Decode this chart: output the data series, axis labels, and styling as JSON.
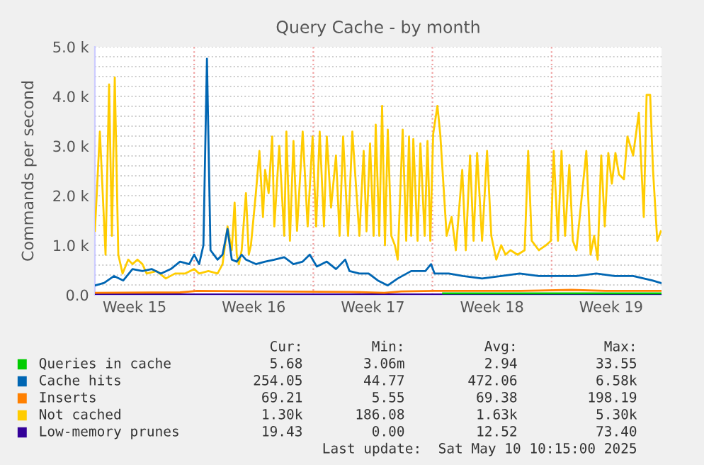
{
  "chart_data": {
    "type": "line",
    "title": "Query Cache - by month",
    "ylabel": "Commands per second",
    "xlim": [
      "2025-04-08T04:00",
      "2025-05-11T11:00"
    ],
    "ylim": [
      0,
      5000
    ],
    "xticks": [
      {
        "value": "2025-04-10T12:00",
        "label": "Week 15"
      },
      {
        "value": "2025-04-17T12:00",
        "label": "Week 16"
      },
      {
        "value": "2025-04-24T12:00",
        "label": "Week 17"
      },
      {
        "value": "2025-05-01T12:00",
        "label": "Week 18"
      },
      {
        "value": "2025-05-08T12:00",
        "label": "Week 19"
      }
    ],
    "yticks": [
      {
        "value": 0,
        "label": "0.0"
      },
      {
        "value": 200,
        "label": null
      },
      {
        "value": 400,
        "label": null
      },
      {
        "value": 600,
        "label": null
      },
      {
        "value": 800,
        "label": null
      },
      {
        "value": 1000,
        "label": "1.0 k"
      },
      {
        "value": 1200,
        "label": null
      },
      {
        "value": 1400,
        "label": null
      },
      {
        "value": 1600,
        "label": null
      },
      {
        "value": 1800,
        "label": null
      },
      {
        "value": 2000,
        "label": "2.0 k"
      },
      {
        "value": 2200,
        "label": null
      },
      {
        "value": 2400,
        "label": null
      },
      {
        "value": 2600,
        "label": null
      },
      {
        "value": 2800,
        "label": null
      },
      {
        "value": 3000,
        "label": "3.0 k"
      },
      {
        "value": 3200,
        "label": null
      },
      {
        "value": 3400,
        "label": null
      },
      {
        "value": 3600,
        "label": null
      },
      {
        "value": 3800,
        "label": null
      },
      {
        "value": 4000,
        "label": "4.0 k"
      },
      {
        "value": 4200,
        "label": null
      },
      {
        "value": 4400,
        "label": null
      },
      {
        "value": 4600,
        "label": null
      },
      {
        "value": 4800,
        "label": null
      },
      {
        "value": 5000,
        "label": "5.0 k"
      }
    ],
    "grid": "y",
    "legend": "bottom",
    "ref_lines": [
      {
        "axis": "x",
        "value": "2025-04-14",
        "label": null,
        "color": "#f0a0a0",
        "line_style": "dotted"
      },
      {
        "axis": "x",
        "value": "2025-04-21",
        "label": null,
        "color": "#f0a0a0",
        "line_style": "dotted"
      },
      {
        "axis": "x",
        "value": "2025-04-28",
        "label": null,
        "color": "#f0a0a0",
        "line_style": "dotted"
      },
      {
        "axis": "x",
        "value": "2025-05-05",
        "label": null,
        "color": "#f0a0a0",
        "line_style": "dotted"
      }
    ],
    "series": [
      {
        "name": "Queries in cache",
        "color": "#00cc00",
        "x": [
          "2025-04-28T15:00",
          "2025-05-11T10:00"
        ],
        "values": [
          30,
          30
        ]
      },
      {
        "name": "Cache hits",
        "color": "#0066b3",
        "x": [
          "2025-04-08T04:00",
          "2025-04-08T17:00",
          "2025-04-09T07:00",
          "2025-04-09T20:00",
          "2025-04-10T09:00",
          "2025-04-10T23:00",
          "2025-04-11T12:00",
          "2025-04-12T01:00",
          "2025-04-12T15:00",
          "2025-04-13T04:00",
          "2025-04-13T17:00",
          "2025-04-14T00:00",
          "2025-04-14T07:00",
          "2025-04-14T13:00",
          "2025-04-14T18:00",
          "2025-04-14T23:00",
          "2025-04-15T09:00",
          "2025-04-15T16:00",
          "2025-04-15T23:00",
          "2025-04-16T05:00",
          "2025-04-16T12:00",
          "2025-04-16T19:00",
          "2025-04-17T01:00",
          "2025-04-17T15:00",
          "2025-04-18T04:00",
          "2025-04-18T17:00",
          "2025-04-19T07:00",
          "2025-04-19T20:00",
          "2025-04-20T09:00",
          "2025-04-20T19:00",
          "2025-04-21T05:00",
          "2025-04-21T19:00",
          "2025-04-22T08:00",
          "2025-04-22T21:00",
          "2025-04-23T03:00",
          "2025-04-23T17:00",
          "2025-04-24T06:00",
          "2025-04-24T19:00",
          "2025-04-25T09:00",
          "2025-04-25T23:00",
          "2025-04-26T18:00",
          "2025-04-27T14:00",
          "2025-04-27T22:00",
          "2025-04-28T03:00",
          "2025-04-28T23:00",
          "2025-04-29T19:00",
          "2025-04-30T22:00",
          "2025-05-02T01:00",
          "2025-05-03T03:00",
          "2025-05-04T06:00",
          "2025-05-05T09:00",
          "2025-05-06T11:00",
          "2025-05-07T15:00",
          "2025-05-08T17:00",
          "2025-05-09T19:00",
          "2025-05-10T22:00",
          "2025-05-11T10:00"
        ],
        "values": [
          190,
          240,
          380,
          290,
          520,
          480,
          520,
          430,
          520,
          670,
          620,
          810,
          620,
          1000,
          4760,
          900,
          710,
          810,
          1330,
          710,
          670,
          810,
          710,
          620,
          670,
          710,
          760,
          620,
          670,
          810,
          570,
          670,
          520,
          710,
          480,
          430,
          430,
          290,
          190,
          330,
          480,
          480,
          620,
          430,
          430,
          380,
          330,
          380,
          430,
          380,
          380,
          380,
          430,
          380,
          380,
          290,
          240
        ]
      },
      {
        "name": "Inserts",
        "color": "#ff8000",
        "x": [
          "2025-04-08T04:00",
          "2025-04-13T04:00",
          "2025-04-14T04:00",
          "2025-04-18T04:00",
          "2025-04-23T04:00",
          "2025-04-25T04:00",
          "2025-04-26T04:00",
          "2025-04-28T04:00",
          "2025-05-03T04:00",
          "2025-05-06T04:00",
          "2025-05-08T04:00",
          "2025-05-11T10:00"
        ],
        "values": [
          40,
          50,
          80,
          70,
          60,
          40,
          70,
          80,
          80,
          100,
          80,
          80
        ]
      },
      {
        "name": "Not cached",
        "color": "#ffcc00",
        "x": [
          "2025-04-08T04:00",
          "2025-04-08T11:00",
          "2025-04-08T19:00",
          "2025-04-09T00:00",
          "2025-04-09T04:00",
          "2025-04-09T08:00",
          "2025-04-09T13:00",
          "2025-04-09T19:00",
          "2025-04-10T03:00",
          "2025-04-10T09:00",
          "2025-04-10T16:00",
          "2025-04-10T23:00",
          "2025-04-11T05:00",
          "2025-04-11T19:00",
          "2025-04-12T08:00",
          "2025-04-12T21:00",
          "2025-04-13T11:00",
          "2025-04-14T00:00",
          "2025-04-14T07:00",
          "2025-04-14T20:00",
          "2025-04-15T09:00",
          "2025-04-15T16:00",
          "2025-04-15T23:00",
          "2025-04-16T05:00",
          "2025-04-16T09:00",
          "2025-04-16T12:00",
          "2025-04-16T15:00",
          "2025-04-16T19:00",
          "2025-04-17T01:00",
          "2025-04-17T05:00",
          "2025-04-17T08:00",
          "2025-04-17T15:00",
          "2025-04-17T20:00",
          "2025-04-18T01:00",
          "2025-04-18T04:00",
          "2025-04-18T09:00",
          "2025-04-18T14:00",
          "2025-04-18T17:00",
          "2025-04-19T00:00",
          "2025-04-19T07:00",
          "2025-04-19T10:00",
          "2025-04-19T15:00",
          "2025-04-19T20:00",
          "2025-04-20T01:00",
          "2025-04-20T09:00",
          "2025-04-20T16:00",
          "2025-04-20T23:00",
          "2025-04-21T04:00",
          "2025-04-21T09:00",
          "2025-04-21T15:00",
          "2025-04-21T19:00",
          "2025-04-22T01:00",
          "2025-04-22T08:00",
          "2025-04-22T13:00",
          "2025-04-22T18:00",
          "2025-04-23T01:00",
          "2025-04-23T07:00",
          "2025-04-23T17:00",
          "2025-04-23T23:00",
          "2025-04-24T03:00",
          "2025-04-24T08:00",
          "2025-04-24T13:00",
          "2025-04-24T16:00",
          "2025-04-24T21:00",
          "2025-04-25T01:00",
          "2025-04-25T05:00",
          "2025-04-25T09:00",
          "2025-04-25T14:00",
          "2025-04-25T19:00",
          "2025-04-25T23:00",
          "2025-04-26T06:00",
          "2025-04-26T11:00",
          "2025-04-26T15:00",
          "2025-04-26T18:00",
          "2025-04-26T21:00",
          "2025-04-27T03:00",
          "2025-04-27T07:00",
          "2025-04-27T13:00",
          "2025-04-27T17:00",
          "2025-04-27T21:00",
          "2025-04-28T01:00",
          "2025-04-28T07:00",
          "2025-04-28T11:00",
          "2025-04-28T20:00",
          "2025-04-29T03:00",
          "2025-04-29T09:00",
          "2025-04-29T18:00",
          "2025-04-29T23:00",
          "2025-04-30T05:00",
          "2025-04-30T10:00",
          "2025-04-30T15:00",
          "2025-04-30T22:00",
          "2025-05-01T05:00",
          "2025-05-01T11:00",
          "2025-05-01T18:00",
          "2025-05-02T01:00",
          "2025-05-02T07:00",
          "2025-05-02T14:00",
          "2025-05-03T00:00",
          "2025-05-03T10:00",
          "2025-05-03T15:00",
          "2025-05-03T20:00",
          "2025-05-04T06:00",
          "2025-05-04T16:00",
          "2025-05-04T23:00",
          "2025-05-05T03:00",
          "2025-05-05T09:00",
          "2025-05-05T14:00",
          "2025-05-05T19:00",
          "2025-05-06T01:00",
          "2025-05-06T06:00",
          "2025-05-06T11:00",
          "2025-05-07T01:00",
          "2025-05-07T07:00",
          "2025-05-07T12:00",
          "2025-05-07T17:00",
          "2025-05-07T22:00",
          "2025-05-08T03:00",
          "2025-05-08T08:00",
          "2025-05-08T13:00",
          "2025-05-08T18:00",
          "2025-05-08T23:00",
          "2025-05-09T06:00",
          "2025-05-09T11:00",
          "2025-05-09T19:00",
          "2025-05-10T03:00",
          "2025-05-10T10:00",
          "2025-05-10T14:00",
          "2025-05-10T19:00",
          "2025-05-10T23:00",
          "2025-05-11T05:00",
          "2025-05-11T10:00"
        ],
        "values": [
          1290,
          3290,
          810,
          4240,
          1190,
          4380,
          810,
          430,
          710,
          620,
          710,
          620,
          430,
          480,
          330,
          430,
          430,
          520,
          430,
          480,
          430,
          620,
          1380,
          900,
          1860,
          810,
          620,
          900,
          2050,
          810,
          1000,
          2050,
          2900,
          1570,
          2520,
          2050,
          3190,
          1380,
          3000,
          1190,
          3290,
          1090,
          3100,
          1290,
          3290,
          1380,
          3190,
          1380,
          3290,
          1380,
          3190,
          1760,
          2810,
          1190,
          3190,
          1190,
          3290,
          1190,
          2900,
          1280,
          3050,
          1190,
          3430,
          1190,
          3810,
          1000,
          3330,
          1190,
          1000,
          710,
          3330,
          1090,
          3190,
          1190,
          3140,
          1090,
          3050,
          1190,
          3100,
          1090,
          3240,
          3810,
          3240,
          1190,
          1570,
          900,
          2520,
          900,
          2810,
          1090,
          2860,
          1090,
          2900,
          1190,
          710,
          1000,
          810,
          900,
          810,
          900,
          2900,
          1090,
          900,
          1000,
          1090,
          2900,
          1090,
          2900,
          1190,
          2620,
          1090,
          900,
          2900,
          810,
          1190,
          710,
          2810,
          1380,
          2860,
          2240,
          2860,
          2430,
          2330,
          3190,
          2810,
          3670,
          1570,
          4030,
          4030,
          2520,
          1090,
          1280
        ]
      },
      {
        "name": "Low-memory prunes",
        "color": "#330099",
        "x": [
          "2025-04-08T04:00",
          "2025-05-11T10:00"
        ],
        "values": [
          10,
          10
        ]
      }
    ],
    "annotations": [
      "Cur:",
      "Min:",
      "Avg:",
      "Max:",
      "5.68",
      "3.06m",
      "2.94",
      "33.55",
      "254.05",
      "44.77",
      "472.06",
      "6.58k",
      "69.21",
      "5.55",
      "69.38",
      "198.19",
      "1.30k",
      "186.08",
      "1.63k",
      "5.30k",
      "19.43",
      "0.00",
      "12.52",
      "73.40",
      "Last update:  Sat May 10 10:15:00 2025"
    ]
  }
}
